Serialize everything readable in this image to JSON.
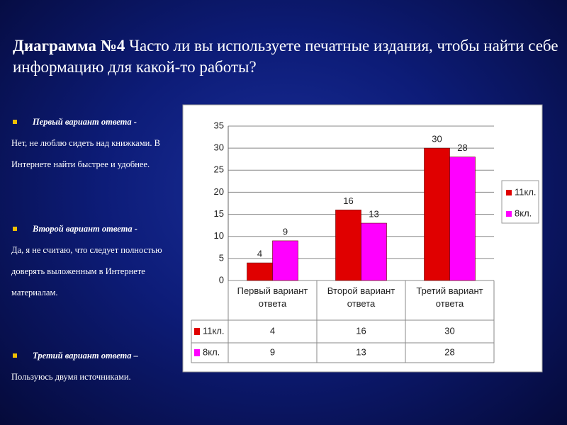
{
  "slide": {
    "title_bold": "Диаграмма №4",
    "title_rest": "Часто ли вы используете печатные издания, чтобы найти себе информацию для какой-то работы?",
    "bullets": [
      {
        "head": "Первый вариант ответа -",
        "text": "Нет, не люблю сидеть над книжками. В Интернете найти быстрее и удобнее."
      },
      {
        "head": "Второй вариант ответа -",
        "text": "Да, я не считаю, что следует полностью доверять выложенным в Интернете материалам."
      },
      {
        "head": "Третий вариант ответа –",
        "text": "Пользуюсь двумя источниками."
      }
    ]
  },
  "chart_data": {
    "type": "bar",
    "categories": [
      "Первый вариант ответа",
      "Второй вариант ответа",
      "Третий вариант ответа"
    ],
    "series": [
      {
        "name": "11кл.",
        "color": "#e00000",
        "values": [
          4,
          16,
          30
        ]
      },
      {
        "name": "8кл.",
        "color": "#ff00ff",
        "values": [
          9,
          13,
          28
        ]
      }
    ],
    "ylim": [
      0,
      35
    ],
    "yticks": [
      0,
      5,
      10,
      15,
      20,
      25,
      30,
      35
    ],
    "grid": true,
    "legend": "right"
  }
}
